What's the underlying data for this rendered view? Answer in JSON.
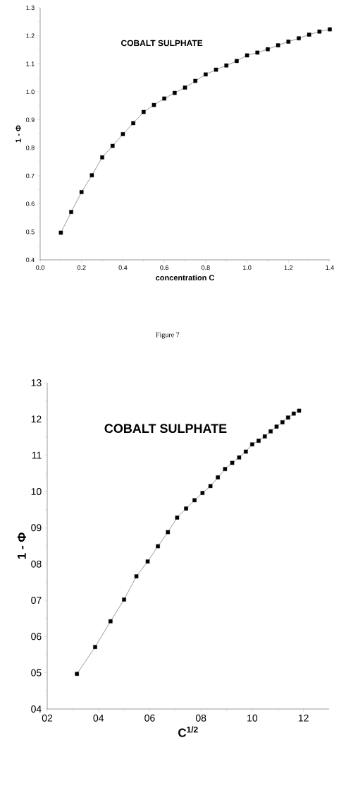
{
  "chart_data": [
    {
      "type": "line",
      "marker": "square",
      "line_style": "solid",
      "color": "#000000",
      "xlabel": "concentration C",
      "ylabel": "1 - Φ",
      "annotations": [
        "COBALT SULPHATE",
        "Figure 7"
      ],
      "x": [
        0.1,
        0.15,
        0.2,
        0.25,
        0.3,
        0.35,
        0.4,
        0.45,
        0.5,
        0.55,
        0.6,
        0.65,
        0.7,
        0.75,
        0.8,
        0.85,
        0.9,
        0.95,
        1.0,
        1.05,
        1.1,
        1.15,
        1.2,
        1.25,
        1.3,
        1.35,
        1.4
      ],
      "values": [
        0.497,
        0.571,
        0.642,
        0.702,
        0.766,
        0.807,
        0.849,
        0.888,
        0.928,
        0.953,
        0.976,
        0.996,
        1.015,
        1.039,
        1.062,
        1.079,
        1.094,
        1.11,
        1.13,
        1.14,
        1.152,
        1.166,
        1.179,
        1.191,
        1.204,
        1.215,
        1.223
      ],
      "xlim": [
        0,
        1.4
      ],
      "ylim": [
        0.4,
        1.3
      ],
      "xticks": [
        {
          "value": 0,
          "label": "0.0"
        },
        0.2,
        0.4,
        0.6,
        0.8,
        {
          "value": 1,
          "label": "1.0"
        },
        1.2,
        1.4
      ],
      "yticks": [
        0.4,
        0.5,
        0.6,
        0.7,
        0.8,
        0.9,
        {
          "value": 1,
          "label": "1.0"
        },
        1.1,
        1.2,
        1.3
      ]
    },
    {
      "type": "line",
      "marker": "square",
      "line_style": "solid",
      "color": "#000000",
      "xlabel": "C$^{1/2}$",
      "ylabel": "1 - Φ",
      "annotations": [
        "COBALT SULPHATE"
      ],
      "x": [
        3.16,
        3.87,
        4.47,
        5.0,
        5.48,
        5.92,
        6.32,
        6.71,
        7.07,
        7.42,
        7.75,
        8.06,
        8.37,
        8.66,
        8.94,
        9.22,
        9.49,
        9.75,
        10.0,
        10.25,
        10.49,
        10.72,
        10.95,
        11.18,
        11.4,
        11.62,
        11.83
      ],
      "values": [
        4.97,
        5.71,
        6.42,
        7.02,
        7.66,
        8.07,
        8.49,
        8.88,
        9.28,
        9.53,
        9.76,
        9.96,
        10.15,
        10.39,
        10.62,
        10.79,
        10.94,
        11.1,
        11.3,
        11.4,
        11.52,
        11.66,
        11.79,
        11.91,
        12.04,
        12.15,
        12.23
      ],
      "xlim": [
        2,
        13
      ],
      "ylim": [
        4,
        13
      ],
      "xticks": [
        {
          "value": 2,
          "label": "02"
        },
        {
          "value": 4,
          "label": "04"
        },
        {
          "value": 6,
          "label": "06"
        },
        {
          "value": 8,
          "label": "08"
        },
        10,
        12
      ],
      "yticks": [
        {
          "value": 4,
          "label": "04"
        },
        {
          "value": 5,
          "label": "05"
        },
        {
          "value": 6,
          "label": "06"
        },
        {
          "value": 7,
          "label": "07"
        },
        {
          "value": 8,
          "label": "08"
        },
        {
          "value": 9,
          "label": "09"
        },
        10,
        11,
        12,
        13
      ]
    }
  ]
}
